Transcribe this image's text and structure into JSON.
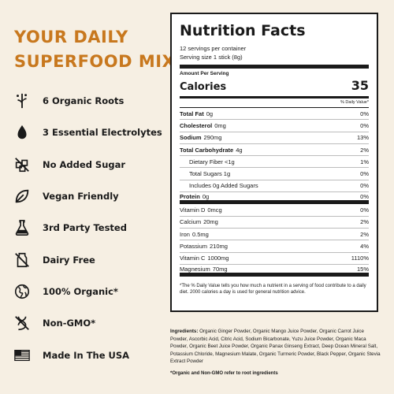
{
  "headline": {
    "line1": "YOUR DAILY",
    "line2": "SUPERFOOD MIX"
  },
  "accent_color": "#c8781e",
  "features": [
    {
      "icon": "roots-icon",
      "label": "6 Organic Roots"
    },
    {
      "icon": "droplet-icon",
      "label": "3 Essential Electrolytes"
    },
    {
      "icon": "no-sugar-icon",
      "label": "No Added Sugar"
    },
    {
      "icon": "leaf-icon",
      "label": "Vegan Friendly"
    },
    {
      "icon": "flask-icon",
      "label": "3rd Party Tested"
    },
    {
      "icon": "no-dairy-icon",
      "label": "Dairy Free"
    },
    {
      "icon": "globe-icon",
      "label": "100% Organic*"
    },
    {
      "icon": "non-gmo-icon",
      "label": "Non-GMO*"
    },
    {
      "icon": "us-flag-icon",
      "label": "Made In The USA"
    }
  ],
  "nutrition": {
    "title": "Nutrition Facts",
    "servings": "12 servings per container",
    "serving_size": "Serving size 1 stick (8g)",
    "amount_per_serving": "Amount Per Serving",
    "calories_label": "Calories",
    "calories_value": "35",
    "dv_header": "% Daily Value*",
    "rows": [
      {
        "name": "Total Fat",
        "amount": "0g",
        "pct": "0%"
      },
      {
        "name": "Cholesterol",
        "amount": "0mg",
        "pct": "0%"
      },
      {
        "name": "Sodium",
        "amount": "290mg",
        "pct": "13%"
      },
      {
        "name": "Total Carbohydrate",
        "amount": "4g",
        "pct": "2%"
      },
      {
        "name": "Dietary Fiber <1g",
        "amount": "",
        "pct": "1%"
      },
      {
        "name": "Total Sugars 1g",
        "amount": "",
        "pct": "0%"
      },
      {
        "name": "Includes 0g Added Sugars",
        "amount": "",
        "pct": "0%"
      },
      {
        "name": "Protein",
        "amount": "0g",
        "pct": "0%"
      },
      {
        "name": "Vitamin D",
        "amount": "0mcg",
        "pct": "0%"
      },
      {
        "name": "Calcium",
        "amount": "20mg",
        "pct": "2%"
      },
      {
        "name": "Iron",
        "amount": "0.5mg",
        "pct": "2%"
      },
      {
        "name": "Potassium",
        "amount": "210mg",
        "pct": "4%"
      },
      {
        "name": "Vitamin C",
        "amount": "1000mg",
        "pct": "1110%"
      },
      {
        "name": "Magnesium",
        "amount": "70mg",
        "pct": "15%"
      }
    ],
    "footnote": "*The % Daily Value tells you how much a nutrient in a serving of food contribute to a daily diet. 2000 calories a day is used for general nutrition advice."
  },
  "ingredients": {
    "label": "Ingredients:",
    "text": "Organic Ginger Powder, Organic Mango Juice Powder, Organic Carrot Juice Powder, Ascorbic Acid, Citric Acid, Sodium Bicarbonate, Yuzu Juice Powder, Organic Maca Powder, Organic Beet Juice Powder, Organic Panax Ginseng Extract, Deep Ocean Mineral Salt, Potassium Chloride, Magnesium Malate, Organic Turmeric Powder, Black Pepper, Organic Stevia Extract Powder",
    "note": "*Organic and Non-GMO refer to root ingredients"
  }
}
